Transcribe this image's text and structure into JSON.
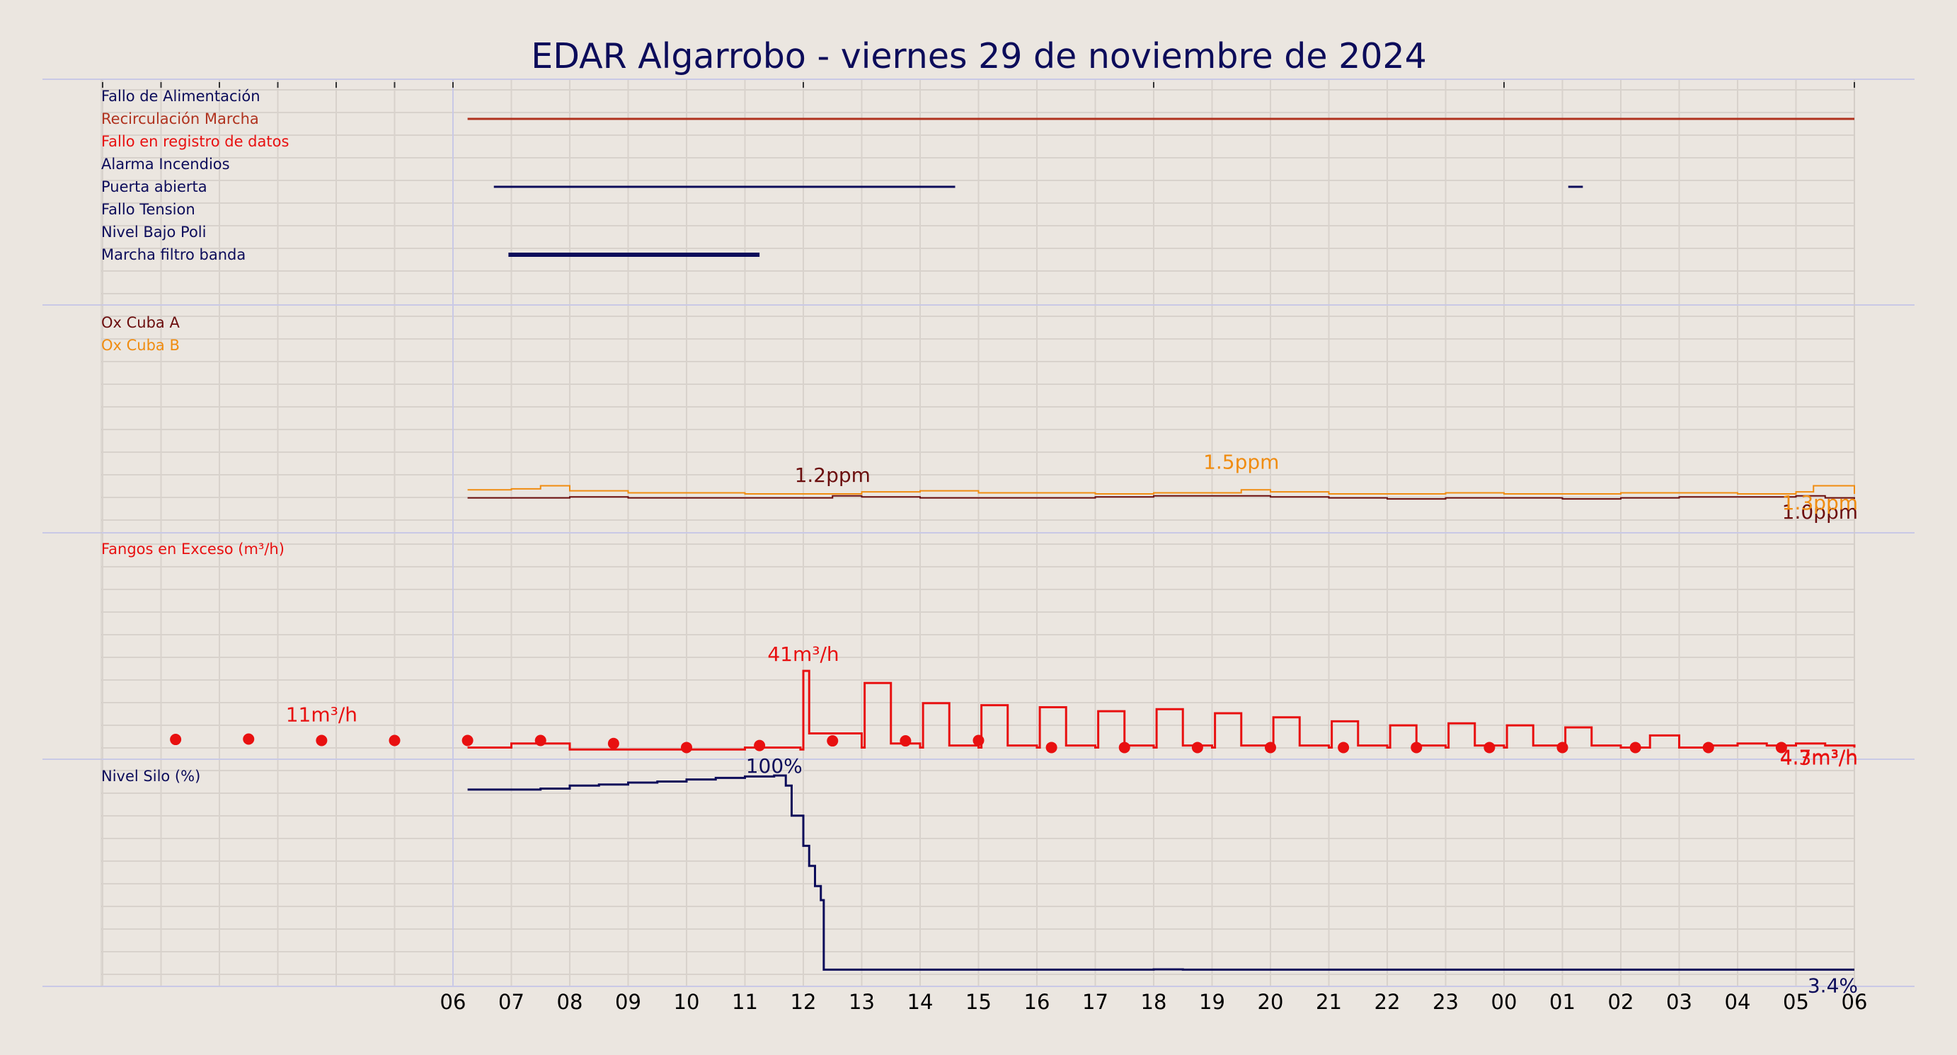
{
  "title": "EDAR Algarrobo   -   viernes 29 de noviembre de 2024",
  "colors": {
    "background": "#ebe6e0",
    "navy": "#0c0c5a",
    "dark_red": "#6b0d0d",
    "brick": "#b0321e",
    "red": "#e81010",
    "orange": "#f08c10"
  },
  "chart_data": {
    "type": "line",
    "x_axis": {
      "ticks": [
        "06",
        "07",
        "08",
        "09",
        "10",
        "11",
        "12",
        "13",
        "14",
        "15",
        "16",
        "17",
        "18",
        "19",
        "20",
        "21",
        "22",
        "23",
        "00",
        "01",
        "02",
        "03",
        "04",
        "05",
        "06"
      ],
      "unit": "hour",
      "range_hours": [
        0,
        24
      ]
    },
    "grid": true,
    "panels": [
      {
        "name": "alarms",
        "type": "state-timeline",
        "signals": [
          {
            "name": "Fallo de Alimentación",
            "color": "#0c0c5a",
            "active": []
          },
          {
            "name": "Recirculación Marcha",
            "color": "#b0321e",
            "active": [
              [
                0.25,
                24.0
              ]
            ]
          },
          {
            "name": "Fallo en registro de datos",
            "color": "#e81010",
            "active": []
          },
          {
            "name": "Alarma Incendios",
            "color": "#0c0c5a",
            "active": []
          },
          {
            "name": "Puerta abierta",
            "color": "#0c0c5a",
            "active": [
              [
                0.7,
                8.6
              ],
              [
                19.1,
                19.35
              ]
            ]
          },
          {
            "name": "Fallo Tension",
            "color": "#0c0c5a",
            "active": []
          },
          {
            "name": "Nivel Bajo Poli",
            "color": "#0c0c5a",
            "active": []
          },
          {
            "name": "Marcha filtro banda",
            "color": "#0c0c5a",
            "active": [
              [
                0.95,
                5.25
              ]
            ]
          }
        ]
      },
      {
        "name": "oxygen",
        "type": "line",
        "unit": "ppm",
        "y_range": [
          0,
          10
        ],
        "series": [
          {
            "name": "Ox Cuba A",
            "color": "#6b0d0d",
            "x": [
              0.25,
              1,
              2,
              3,
              4,
              5,
              6,
              6.5,
              7,
              8,
              9,
              10,
              11,
              12,
              13,
              14,
              15,
              16,
              17,
              18,
              19,
              20,
              21,
              22,
              23,
              23.5,
              24
            ],
            "y": [
              1.1,
              1.1,
              1.15,
              1.1,
              1.1,
              1.1,
              1.1,
              1.2,
              1.15,
              1.1,
              1.1,
              1.1,
              1.15,
              1.2,
              1.2,
              1.15,
              1.1,
              1.05,
              1.1,
              1.1,
              1.05,
              1.1,
              1.15,
              1.15,
              1.2,
              1.1,
              1.05
            ],
            "annotations": [
              {
                "x": 6.5,
                "y": 1.2,
                "text": "1.2ppm"
              },
              {
                "x": 24.0,
                "y": 1.05,
                "text": "1.0ppm"
              }
            ]
          },
          {
            "name": "Ox Cuba B",
            "color": "#f08c10",
            "x": [
              0.25,
              1,
              1.5,
              2,
              3,
              4,
              5,
              6,
              7,
              8,
              9,
              10,
              11,
              12,
              13,
              13.5,
              14,
              15,
              16,
              17,
              18,
              19,
              20,
              21,
              22,
              23,
              23.3,
              24
            ],
            "y": [
              1.5,
              1.55,
              1.7,
              1.45,
              1.35,
              1.35,
              1.3,
              1.3,
              1.4,
              1.45,
              1.35,
              1.35,
              1.3,
              1.35,
              1.35,
              1.5,
              1.4,
              1.3,
              1.3,
              1.35,
              1.3,
              1.3,
              1.35,
              1.35,
              1.3,
              1.4,
              1.7,
              1.3
            ],
            "annotations": [
              {
                "x": 13.5,
                "y": 1.5,
                "text": "1.5ppm"
              },
              {
                "x": 24.0,
                "y": 1.3,
                "text": "1.3ppm"
              }
            ]
          }
        ]
      },
      {
        "name": "sludge",
        "type": "line",
        "title": "Fangos en Exceso (m³/h)",
        "unit": "m³/h",
        "y_range": [
          0,
          100
        ],
        "series": [
          {
            "name": "Fangos en Exceso",
            "color": "#e81010",
            "x": [
              0.25,
              0.9,
              1.0,
              2.0,
              3.0,
              4.0,
              5.0,
              5.95,
              6.0,
              6.1,
              7.0,
              7.05,
              7.5,
              8.0,
              8.05,
              8.5,
              9.0,
              9.05,
              9.5,
              10.0,
              10.05,
              10.5,
              11.0,
              11.05,
              11.5,
              12.0,
              12.05,
              12.5,
              13.0,
              13.05,
              13.5,
              14.0,
              14.05,
              14.5,
              15.0,
              15.05,
              15.5,
              16.0,
              16.05,
              16.5,
              17.0,
              17.05,
              17.5,
              18.0,
              18.05,
              18.5,
              19.0,
              19.05,
              19.5,
              20.0,
              20.5,
              21.0,
              21.5,
              22.0,
              22.5,
              23.0,
              23.5,
              24.0
            ],
            "y": [
              3,
              3,
              5,
              2,
              2,
              2,
              3,
              2,
              41,
              10,
              3,
              35,
              5,
              3,
              25,
              4,
              3,
              24,
              4,
              3,
              23,
              4,
              3,
              21,
              4,
              3,
              22,
              4,
              3,
              20,
              4,
              3,
              18,
              4,
              3,
              16,
              4,
              3,
              14,
              4,
              3,
              15,
              4,
              3,
              14,
              4,
              3,
              13,
              4,
              3,
              9,
              3,
              4,
              5,
              4,
              5,
              4,
              3
            ],
            "markers": {
              "x": [
                -4.75,
                -3.5,
                -2.25,
                -1.0,
                0.25,
                1.5,
                2.75,
                4.0,
                5.25,
                6.5,
                7.75,
                9.0,
                10.25,
                11.5,
                12.75,
                14.0,
                15.25,
                16.5,
                17.75,
                19.0,
                20.25,
                21.5,
                22.75
              ],
              "y": [
                7,
                7.2,
                6.5,
                6.5,
                6.5,
                6.5,
                5,
                3,
                4,
                6.3,
                6.3,
                6.5,
                3,
                3,
                3,
                3,
                3,
                3,
                3,
                3,
                3,
                3,
                3
              ]
            },
            "annotations": [
              {
                "x": -2.25,
                "y": 11,
                "text": "11m³/h"
              },
              {
                "x": 6.0,
                "y": 41,
                "text": "41m³/h"
              },
              {
                "x": 24.0,
                "y": 4.3,
                "text": "4.3m³/h"
              },
              {
                "x": 24.0,
                "y": 4.7,
                "text": "4.7m³/h"
              }
            ]
          }
        ]
      },
      {
        "name": "silo",
        "type": "line",
        "title": "Nivel Silo (%)",
        "unit": "%",
        "y_range": [
          0,
          100
        ],
        "series": [
          {
            "name": "Nivel Silo (%)",
            "color": "#0c0c5a",
            "x": [
              0.25,
              1.0,
              1.5,
              2.0,
              2.5,
              3.0,
              3.5,
              4.0,
              4.5,
              5.0,
              5.5,
              5.55,
              5.7,
              5.8,
              6.0,
              6.1,
              6.2,
              6.3,
              6.35,
              6.5,
              12.0,
              12.5,
              13.0,
              20.0,
              24.0
            ],
            "y": [
              93,
              93,
              93.5,
              95,
              95.5,
              96.5,
              97,
              98,
              98.8,
              99.5,
              100,
              100,
              95,
              80,
              65,
              55,
              45,
              38,
              3.4,
              3.4,
              3.5,
              3.4,
              3.4,
              3.4,
              3.4
            ],
            "annotations": [
              {
                "x": 5.5,
                "y": 100,
                "text": "100%"
              },
              {
                "x": 24.0,
                "y": 3.4,
                "text": "3.4%"
              }
            ]
          }
        ]
      }
    ]
  }
}
